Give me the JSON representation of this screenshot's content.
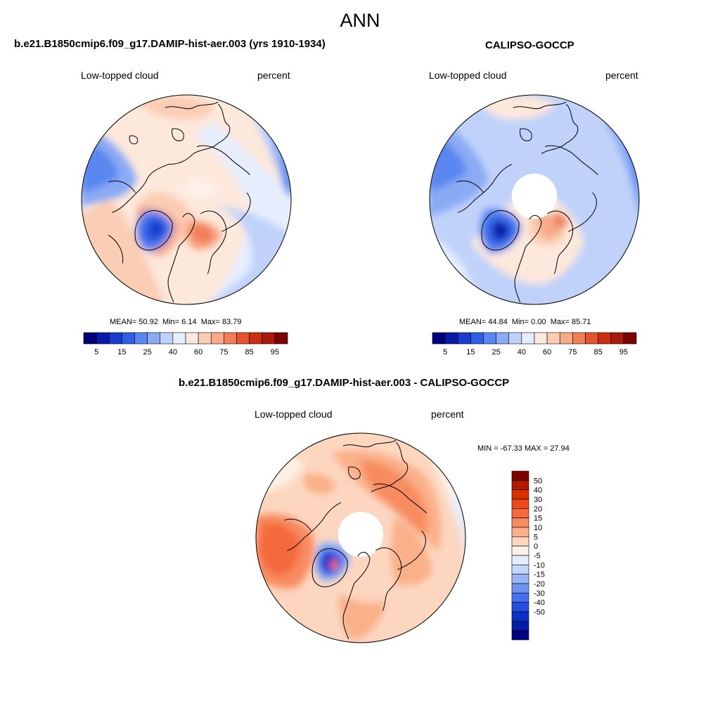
{
  "page": {
    "title": "ANN"
  },
  "panels": [
    {
      "id": "model",
      "title": "b.e21.B1850cmip6.f09_g17.DAMIP-hist-aer.003 (yrs 1910-1934)",
      "left_label": "Low-topped cloud",
      "right_label": "percent",
      "stats": {
        "mean_label": "MEAN=",
        "mean": "50.92",
        "min_label": "Min=",
        "min": "6.14",
        "max_label": "Max=",
        "max": "83.79"
      },
      "has_polar_hole": false
    },
    {
      "id": "obs",
      "title": "CALIPSO-GOCCP",
      "left_label": "Low-topped cloud",
      "right_label": "percent",
      "stats": {
        "mean_label": "MEAN=",
        "mean": "44.84",
        "min_label": "Min=",
        "min": "0.00",
        "max_label": "Max=",
        "max": "85.71"
      },
      "has_polar_hole": true
    },
    {
      "id": "diff",
      "title": "b.e21.B1850cmip6.f09_g17.DAMIP-hist-aer.003 - CALIPSO-GOCCP",
      "left_label": "Low-topped cloud",
      "right_label": "percent",
      "minmax_text": "MIN = -67.33 MAX =  27.94",
      "has_polar_hole": true
    }
  ],
  "colorbars": {
    "absolute": {
      "colors": [
        "#00007f",
        "#0a1aa6",
        "#1a3ccc",
        "#2f5fe6",
        "#5a86f0",
        "#8aaaf4",
        "#c0d2fa",
        "#e6eefe",
        "#fde8dc",
        "#fbcdb4",
        "#f8aa88",
        "#f07e58",
        "#e6542e",
        "#cc2e14",
        "#a81a0a",
        "#7f0000"
      ],
      "ticks": [
        "5",
        "15",
        "25",
        "40",
        "60",
        "75",
        "85",
        "95"
      ]
    },
    "difference": {
      "colors": [
        "#7f0000",
        "#b01a00",
        "#d83000",
        "#ec4a1c",
        "#f46a3c",
        "#f88c60",
        "#fab088",
        "#fdd6c0",
        "#fdf0e6",
        "#e6eefe",
        "#c4d6fb",
        "#98b6f6",
        "#6e94f2",
        "#4670ec",
        "#2450e0",
        "#0a30c8",
        "#001ea8",
        "#000082"
      ],
      "ticks": [
        "50",
        "40",
        "30",
        "20",
        "15",
        "10",
        "5",
        "0",
        "-5",
        "-10",
        "-15",
        "-20",
        "-30",
        "-40",
        "-50"
      ]
    }
  }
}
